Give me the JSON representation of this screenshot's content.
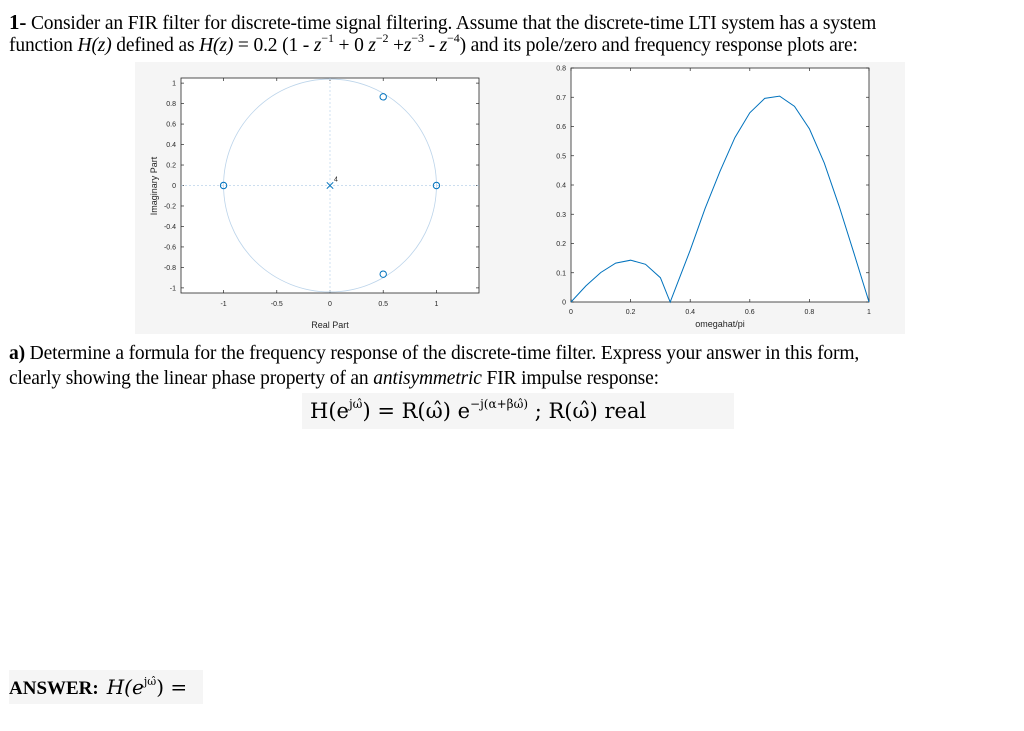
{
  "question": {
    "number": "1-",
    "line1": "Consider an FIR filter for discrete-time signal filtering. Assume that the discrete-time LTI system has a system",
    "line2_a": "function ",
    "line2_Hz": "H(z)",
    "line2_b": " defined as ",
    "line2_c": " = 0.2 (1 - ",
    "line2_d": " + 0 ",
    "line2_e": " +",
    "line2_f": " - ",
    "line2_g": ") and its pole/zero and frequency response plots are:",
    "z": "z",
    "exp_m1": "−1",
    "exp_m2": "−2",
    "exp_m3": "−3",
    "exp_m4": "−4"
  },
  "pole_zero_plot": {
    "xlabel": "Real Part",
    "ylabel": "Imaginary Part",
    "x_ticks": [
      "-1",
      "-0.5",
      "0",
      "0.5",
      "1"
    ],
    "y_ticks": [
      "1",
      "0.8",
      "0.6",
      "0.4",
      "0.2",
      "0",
      "-0.2",
      "-0.4",
      "-0.6",
      "-0.8",
      "-1"
    ],
    "pole_multiplicity": "4",
    "marker_color": "#0072bd",
    "circle_color": "#bcd4ea"
  },
  "chart_data": [
    {
      "type": "scatter",
      "xlabel": "Real Part",
      "ylabel": "Imaginary Part",
      "xlim": [
        -1.4,
        1.4
      ],
      "ylim": [
        -1.05,
        1.05
      ],
      "zeros": [
        {
          "x": -1,
          "y": 0
        },
        {
          "x": 1,
          "y": 0
        },
        {
          "x": 0.5,
          "y": 0.866
        },
        {
          "x": 0.5,
          "y": -0.866
        }
      ],
      "poles": [
        {
          "x": 0,
          "y": 0,
          "multiplicity": 4
        }
      ],
      "unit_circle": true
    },
    {
      "type": "line",
      "xlabel": "omegahat/pi",
      "ylabel": "",
      "xlim": [
        0,
        1
      ],
      "ylim": [
        0,
        0.8
      ],
      "x_ticks": [
        "0",
        "0.2",
        "0.4",
        "0.6",
        "0.8",
        "1"
      ],
      "y_ticks": [
        "0.8",
        "0.7",
        "0.6",
        "0.5",
        "0.4",
        "0.3",
        "0.2",
        "0.1",
        "0"
      ],
      "x": [
        0,
        0.05,
        0.1,
        0.15,
        0.2,
        0.25,
        0.3,
        0.333,
        0.35,
        0.4,
        0.45,
        0.5,
        0.55,
        0.6,
        0.65,
        0.7,
        0.75,
        0.8,
        0.85,
        0.9,
        0.95,
        1
      ],
      "y": [
        0,
        0.055,
        0.101,
        0.133,
        0.143,
        0.129,
        0.083,
        0,
        0.045,
        0.177,
        0.32,
        0.447,
        0.562,
        0.647,
        0.696,
        0.704,
        0.669,
        0.592,
        0.475,
        0.327,
        0.165,
        0
      ],
      "color": "#0072bd"
    }
  ],
  "part_a": {
    "label": "a)",
    "line1": " Determine a formula for the frequency response of the discrete-time filter. Express your answer in this form,",
    "line2_a": "clearly showing the linear phase property of an ",
    "line2_em": "antisymmetric",
    "line2_b": " FIR impulse response:"
  },
  "formula": {
    "lhs": "H(e",
    "lhs_exp": "jω̂",
    "mid": ") = R(ω̂) e",
    "phase_exp": "−j(α+βω̂)",
    "rhs": " ;  R(ω̂)  real"
  },
  "answer": {
    "label": "ANSWER:",
    "lhs": "H(e",
    "lhs_exp": "jω̂",
    "rhs": ") ="
  }
}
